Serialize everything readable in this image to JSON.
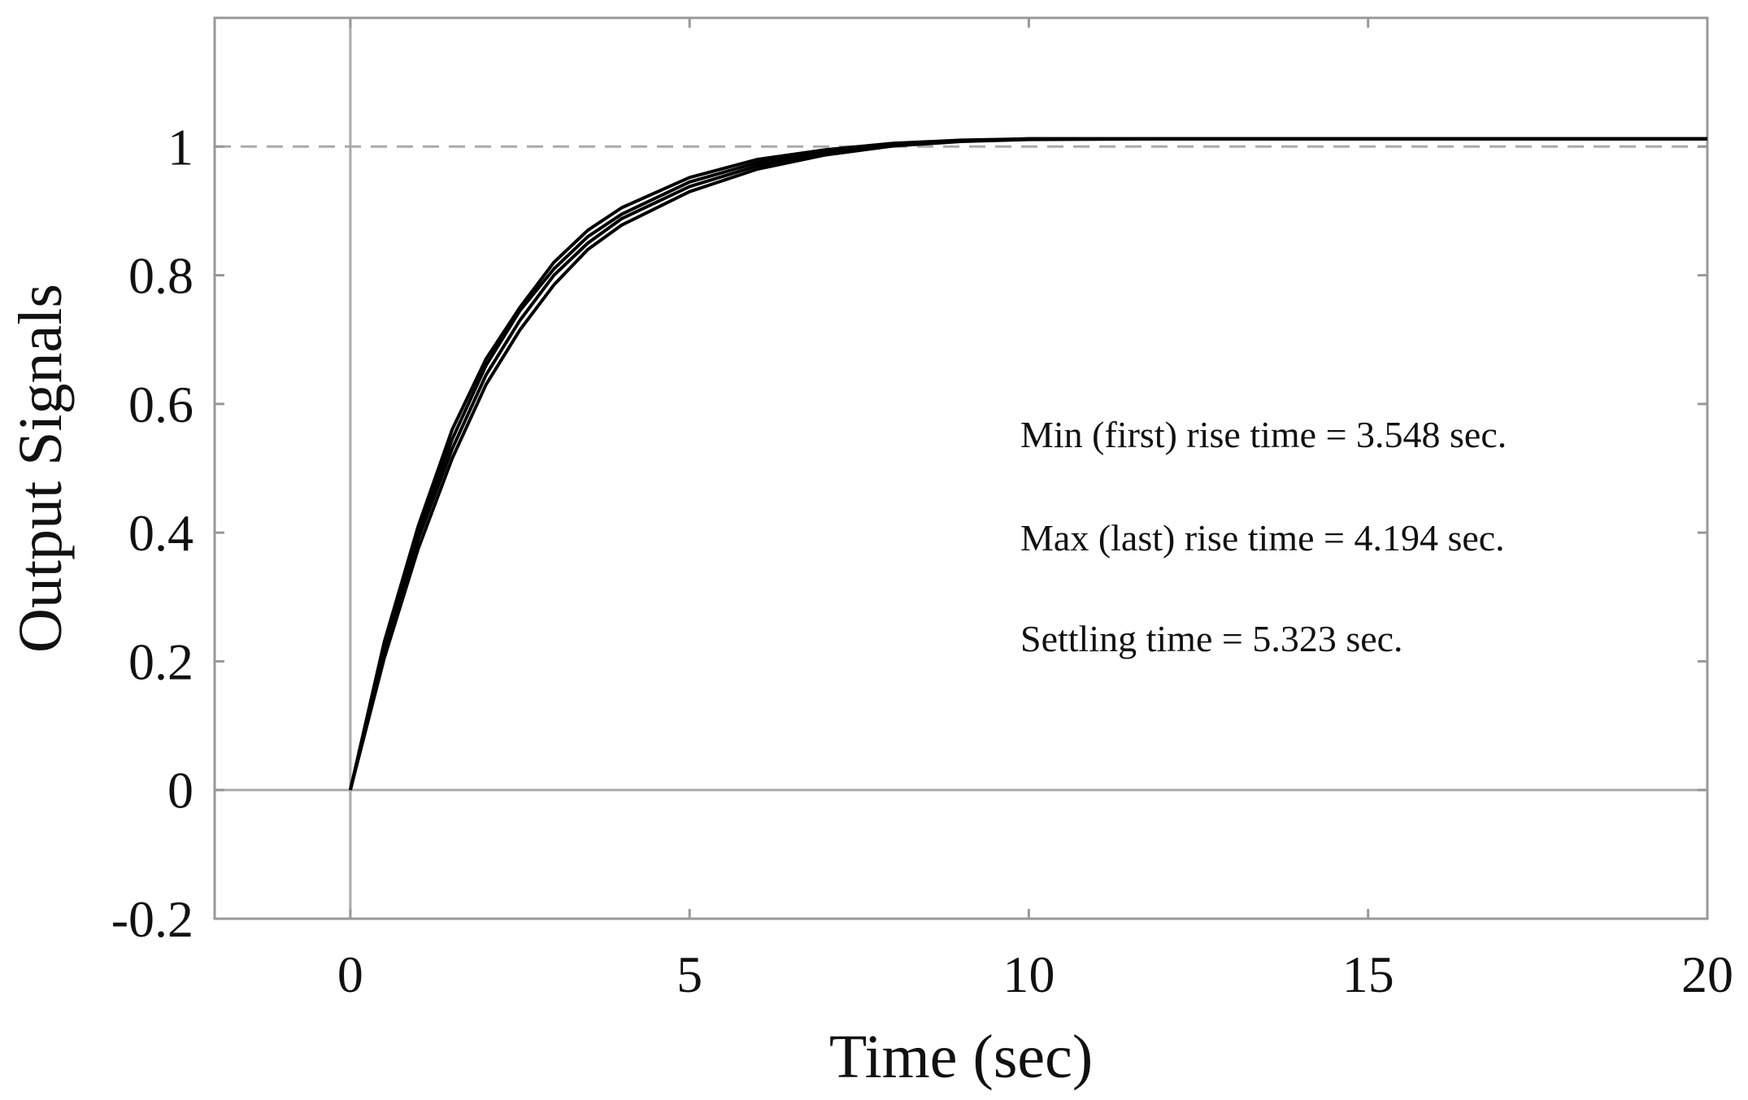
{
  "chart_data": {
    "type": "line",
    "title": "",
    "xlabel": "Time (sec)",
    "ylabel": "Output Signals",
    "xlim": [
      -2,
      20
    ],
    "ylim": [
      -0.2,
      1.2
    ],
    "xticks": [
      0,
      5,
      10,
      15,
      20
    ],
    "xtick_labels": [
      "0",
      "5",
      "10",
      "15",
      "20"
    ],
    "yticks": [
      -0.2,
      0,
      0.2,
      0.4,
      0.6,
      0.8,
      1
    ],
    "ytick_labels": [
      "-0.2",
      "0",
      "0.2",
      "0.4",
      "0.6",
      "0.8",
      "1"
    ],
    "grid": false,
    "reference_line": {
      "y": 1,
      "style": "dashed"
    },
    "zero_lines": true,
    "line_color": "#000000",
    "series": [
      {
        "x": [
          0,
          0.5,
          1,
          1.5,
          2,
          2.5,
          3,
          3.5,
          4,
          5,
          6,
          7,
          8,
          9,
          10,
          12,
          15,
          20
        ],
        "y": [
          0,
          0.23,
          0.41,
          0.56,
          0.67,
          0.75,
          0.82,
          0.87,
          0.905,
          0.952,
          0.98,
          0.995,
          1.005,
          1.01,
          1.012,
          1.012,
          1.012,
          1.012
        ]
      },
      {
        "x": [
          0,
          0.5,
          1,
          1.5,
          2,
          2.5,
          3,
          3.5,
          4,
          5,
          6,
          7,
          8,
          9,
          10,
          12,
          15,
          20
        ],
        "y": [
          0,
          0.22,
          0.4,
          0.545,
          0.66,
          0.745,
          0.81,
          0.86,
          0.895,
          0.945,
          0.975,
          0.993,
          1.004,
          1.009,
          1.012,
          1.012,
          1.012,
          1.012
        ]
      },
      {
        "x": [
          0,
          0.5,
          1,
          1.5,
          2,
          2.5,
          3,
          3.5,
          4,
          5,
          6,
          7,
          8,
          9,
          10,
          12,
          15,
          20
        ],
        "y": [
          0,
          0.215,
          0.39,
          0.53,
          0.645,
          0.73,
          0.8,
          0.85,
          0.888,
          0.938,
          0.97,
          0.99,
          1.003,
          1.009,
          1.012,
          1.012,
          1.012,
          1.012
        ]
      },
      {
        "x": [
          0,
          0.5,
          1,
          1.5,
          2,
          2.5,
          3,
          3.5,
          4,
          5,
          6,
          7,
          8,
          9,
          10,
          12,
          15,
          20
        ],
        "y": [
          0,
          0.205,
          0.375,
          0.515,
          0.63,
          0.715,
          0.785,
          0.84,
          0.878,
          0.93,
          0.965,
          0.987,
          1.001,
          1.008,
          1.011,
          1.012,
          1.012,
          1.012
        ]
      }
    ],
    "annotations": [
      "Min (first) rise time = 3.548 sec.",
      "Max (last) rise time = 4.194 sec.",
      "Settling time = 5.323 sec."
    ]
  }
}
